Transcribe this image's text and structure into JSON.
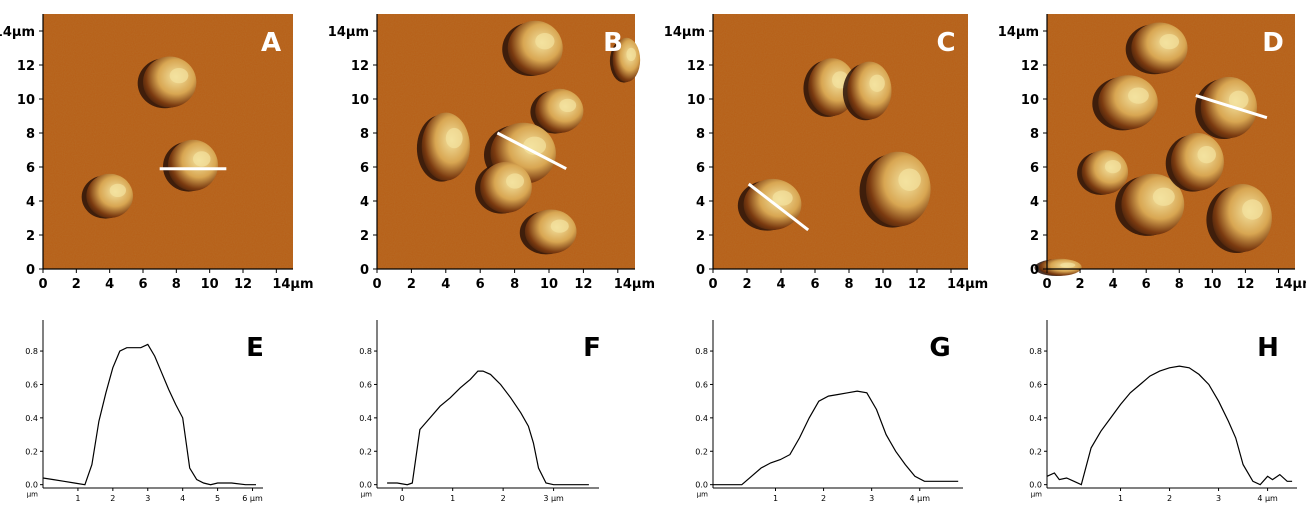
{
  "colors": {
    "afm_background": "#b85e16",
    "cell_highlight": "#f3e2a0",
    "cell_shadow": "#2a1208",
    "scan_line": "#ffffff",
    "axis": "#000000",
    "profile_line": "#000000"
  },
  "afm_panels": [
    {
      "label": "A",
      "x_ticks": [
        "0",
        "2",
        "4",
        "6",
        "8",
        "10",
        "12",
        "14μm"
      ],
      "y_ticks": [
        "0",
        "2",
        "4",
        "6",
        "8",
        "10",
        "12",
        "14μm"
      ],
      "cells": [
        {
          "x": 4.0,
          "y": 4.3,
          "rx": 1.4,
          "ry": 1.3
        },
        {
          "x": 7.6,
          "y": 11.0,
          "rx": 1.6,
          "ry": 1.5
        },
        {
          "x": 9.0,
          "y": 6.1,
          "rx": 1.5,
          "ry": 1.5
        }
      ],
      "scan_line": {
        "x1": 7.0,
        "y1": 5.9,
        "x2": 11.0,
        "y2": 5.9
      }
    },
    {
      "label": "B",
      "x_ticks": [
        "0",
        "2",
        "4",
        "6",
        "8",
        "10",
        "12",
        "14μm"
      ],
      "y_ticks": [
        "0",
        "2",
        "4",
        "6",
        "8",
        "10",
        "12",
        "14μm"
      ],
      "cells": [
        {
          "x": 4.0,
          "y": 7.2,
          "rx": 1.4,
          "ry": 2.0
        },
        {
          "x": 9.2,
          "y": 13.0,
          "rx": 1.6,
          "ry": 1.6
        },
        {
          "x": 10.6,
          "y": 9.3,
          "rx": 1.4,
          "ry": 1.3
        },
        {
          "x": 8.5,
          "y": 6.8,
          "rx": 1.9,
          "ry": 1.8
        },
        {
          "x": 7.5,
          "y": 4.8,
          "rx": 1.5,
          "ry": 1.5
        },
        {
          "x": 10.1,
          "y": 2.2,
          "rx": 1.5,
          "ry": 1.3
        },
        {
          "x": 14.5,
          "y": 12.3,
          "rx": 0.8,
          "ry": 1.3
        }
      ],
      "scan_line": {
        "x1": 7.0,
        "y1": 8.0,
        "x2": 11.0,
        "y2": 5.9
      }
    },
    {
      "label": "C",
      "x_ticks": [
        "0",
        "2",
        "4",
        "6",
        "8",
        "10",
        "12",
        "14μm"
      ],
      "y_ticks": [
        "0",
        "2",
        "4",
        "6",
        "8",
        "10",
        "12",
        "14μm"
      ],
      "cells": [
        {
          "x": 7.0,
          "y": 10.7,
          "rx": 1.4,
          "ry": 1.7
        },
        {
          "x": 9.2,
          "y": 10.5,
          "rx": 1.3,
          "ry": 1.7
        },
        {
          "x": 10.9,
          "y": 4.7,
          "rx": 1.9,
          "ry": 2.2
        },
        {
          "x": 3.5,
          "y": 3.8,
          "rx": 1.7,
          "ry": 1.5
        }
      ],
      "scan_line": {
        "x1": 2.1,
        "y1": 5.0,
        "x2": 5.6,
        "y2": 2.3
      }
    },
    {
      "label": "D",
      "x_ticks": [
        "0",
        "2",
        "4",
        "6",
        "8",
        "10",
        "12",
        "14μm"
      ],
      "y_ticks": [
        "0",
        "2",
        "4",
        "6",
        "8",
        "10",
        "12",
        "14μm"
      ],
      "cells": [
        {
          "x": 6.8,
          "y": 13.0,
          "rx": 1.7,
          "ry": 1.5
        },
        {
          "x": 4.9,
          "y": 9.8,
          "rx": 1.8,
          "ry": 1.6
        },
        {
          "x": 11.0,
          "y": 9.5,
          "rx": 1.7,
          "ry": 1.8
        },
        {
          "x": 3.5,
          "y": 5.7,
          "rx": 1.4,
          "ry": 1.3
        },
        {
          "x": 6.4,
          "y": 3.8,
          "rx": 1.9,
          "ry": 1.8
        },
        {
          "x": 9.1,
          "y": 6.3,
          "rx": 1.6,
          "ry": 1.7
        },
        {
          "x": 11.8,
          "y": 3.0,
          "rx": 1.8,
          "ry": 2.0
        },
        {
          "x": 0.8,
          "y": 0.1,
          "rx": 1.3,
          "ry": 0.5
        }
      ],
      "scan_line": {
        "x1": 9.0,
        "y1": 10.2,
        "x2": 13.3,
        "y2": 8.9
      }
    }
  ],
  "chart_data": [
    {
      "type": "line",
      "label": "E",
      "x_ticks": [
        "1",
        "2",
        "3",
        "4",
        "5",
        "6 μm"
      ],
      "x_tick_values": [
        1,
        2,
        3,
        4,
        5,
        6
      ],
      "y_ticks": [
        "0.0",
        "0.2",
        "0.4",
        "0.6",
        "0.8"
      ],
      "y_unit": "μm",
      "xlim": [
        0,
        6.3
      ],
      "ylim": [
        -0.02,
        0.95
      ],
      "x": [
        0,
        0.3,
        0.6,
        0.9,
        1.2,
        1.4,
        1.6,
        1.8,
        2.0,
        2.2,
        2.4,
        2.6,
        2.8,
        3.0,
        3.2,
        3.4,
        3.6,
        3.8,
        4.0,
        4.1,
        4.2,
        4.4,
        4.6,
        4.8,
        5.0,
        5.4,
        5.8,
        6.1
      ],
      "y": [
        0.04,
        0.03,
        0.02,
        0.01,
        0.0,
        0.12,
        0.38,
        0.55,
        0.7,
        0.8,
        0.82,
        0.82,
        0.82,
        0.84,
        0.77,
        0.67,
        0.57,
        0.48,
        0.4,
        0.25,
        0.1,
        0.03,
        0.01,
        0.0,
        0.01,
        0.01,
        0.0,
        0.0
      ]
    },
    {
      "type": "line",
      "label": "F",
      "x_ticks": [
        "0",
        "1",
        "2",
        "3 μm"
      ],
      "x_tick_values": [
        0,
        1,
        2,
        3
      ],
      "y_ticks": [
        "0.0",
        "0.2",
        "0.4",
        "0.6",
        "0.8"
      ],
      "y_unit": "μm",
      "xlim": [
        -0.5,
        3.9
      ],
      "ylim": [
        -0.02,
        0.95
      ],
      "x": [
        -0.3,
        -0.1,
        0.1,
        0.2,
        0.35,
        0.55,
        0.75,
        0.95,
        1.15,
        1.35,
        1.5,
        1.6,
        1.75,
        1.95,
        2.15,
        2.35,
        2.5,
        2.6,
        2.7,
        2.85,
        3.0,
        3.3,
        3.7
      ],
      "y": [
        0.01,
        0.01,
        0.0,
        0.01,
        0.33,
        0.4,
        0.47,
        0.52,
        0.58,
        0.63,
        0.68,
        0.68,
        0.66,
        0.6,
        0.52,
        0.43,
        0.35,
        0.25,
        0.1,
        0.01,
        0.0,
        0.0,
        0.0
      ]
    },
    {
      "type": "line",
      "label": "G",
      "x_ticks": [
        "1",
        "2",
        "3",
        "4 μm"
      ],
      "x_tick_values": [
        1,
        2,
        3,
        4
      ],
      "y_ticks": [
        "0.0",
        "0.2",
        "0.4",
        "0.6",
        "0.8"
      ],
      "y_unit": "μm",
      "xlim": [
        -0.3,
        4.9
      ],
      "ylim": [
        -0.02,
        0.95
      ],
      "x": [
        -0.3,
        0.0,
        0.3,
        0.5,
        0.7,
        0.9,
        1.1,
        1.3,
        1.5,
        1.7,
        1.9,
        2.1,
        2.3,
        2.5,
        2.7,
        2.9,
        3.1,
        3.3,
        3.5,
        3.7,
        3.9,
        4.1,
        4.4,
        4.8
      ],
      "y": [
        0.0,
        0.0,
        0.0,
        0.05,
        0.1,
        0.13,
        0.15,
        0.18,
        0.28,
        0.4,
        0.5,
        0.53,
        0.54,
        0.55,
        0.56,
        0.55,
        0.45,
        0.3,
        0.2,
        0.12,
        0.05,
        0.02,
        0.02,
        0.02
      ]
    },
    {
      "type": "line",
      "label": "H",
      "x_ticks": [
        "1",
        "2",
        "3",
        "4 μm"
      ],
      "x_tick_values": [
        1,
        2,
        3,
        4
      ],
      "y_ticks": [
        "0.0",
        "0.2",
        "0.4",
        "0.6",
        "0.8"
      ],
      "y_unit": "μm",
      "xlim": [
        -0.5,
        4.6
      ],
      "ylim": [
        -0.02,
        0.95
      ],
      "x": [
        -0.5,
        -0.35,
        -0.25,
        -0.1,
        0.05,
        0.2,
        0.4,
        0.6,
        0.8,
        1.0,
        1.2,
        1.4,
        1.6,
        1.8,
        2.0,
        2.2,
        2.4,
        2.6,
        2.8,
        3.0,
        3.2,
        3.35,
        3.5,
        3.7,
        3.85,
        4.0,
        4.1,
        4.25,
        4.4,
        4.5
      ],
      "y": [
        0.05,
        0.07,
        0.03,
        0.04,
        0.02,
        0.0,
        0.22,
        0.32,
        0.4,
        0.48,
        0.55,
        0.6,
        0.65,
        0.68,
        0.7,
        0.71,
        0.7,
        0.66,
        0.6,
        0.5,
        0.38,
        0.28,
        0.12,
        0.02,
        0.0,
        0.05,
        0.03,
        0.06,
        0.02,
        0.02
      ]
    }
  ]
}
